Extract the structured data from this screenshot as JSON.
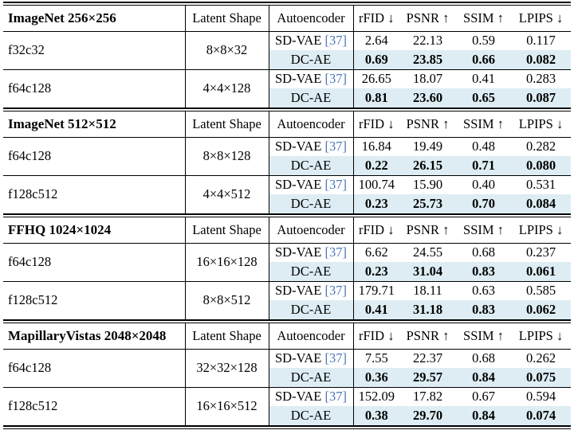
{
  "table": {
    "column_headers": {
      "latent_shape": "Latent Shape",
      "autoencoder": "Autoencoder",
      "metrics": [
        "rFID ↓",
        "PSNR ↑",
        "SSIM ↑",
        "LPIPS ↓"
      ]
    },
    "colors": {
      "highlight_row": "#ddedf3",
      "citation_link": "#4a77b4",
      "rule": "#000000",
      "text": "#000000",
      "background": "#ffffff"
    },
    "sections": [
      {
        "title": "ImageNet 256×256",
        "groups": [
          {
            "config": "f32c32",
            "latent_shape": "8×8×32",
            "rows": [
              {
                "autoencoder": "SD-VAE",
                "citation": "[37]",
                "highlight": false,
                "bold": false,
                "values": [
                  "2.64",
                  "22.13",
                  "0.59",
                  "0.117"
                ]
              },
              {
                "autoencoder": "DC-AE",
                "citation": "",
                "highlight": true,
                "bold": true,
                "values": [
                  "0.69",
                  "23.85",
                  "0.66",
                  "0.082"
                ]
              }
            ]
          },
          {
            "config": "f64c128",
            "latent_shape": "4×4×128",
            "rows": [
              {
                "autoencoder": "SD-VAE",
                "citation": "[37]",
                "highlight": false,
                "bold": false,
                "values": [
                  "26.65",
                  "18.07",
                  "0.41",
                  "0.283"
                ]
              },
              {
                "autoencoder": "DC-AE",
                "citation": "",
                "highlight": true,
                "bold": true,
                "values": [
                  "0.81",
                  "23.60",
                  "0.65",
                  "0.087"
                ]
              }
            ]
          }
        ]
      },
      {
        "title": "ImageNet 512×512",
        "groups": [
          {
            "config": "f64c128",
            "latent_shape": "8×8×128",
            "rows": [
              {
                "autoencoder": "SD-VAE",
                "citation": "[37]",
                "highlight": false,
                "bold": false,
                "values": [
                  "16.84",
                  "19.49",
                  "0.48",
                  "0.282"
                ]
              },
              {
                "autoencoder": "DC-AE",
                "citation": "",
                "highlight": true,
                "bold": true,
                "values": [
                  "0.22",
                  "26.15",
                  "0.71",
                  "0.080"
                ]
              }
            ]
          },
          {
            "config": "f128c512",
            "latent_shape": "4×4×512",
            "rows": [
              {
                "autoencoder": "SD-VAE",
                "citation": "[37]",
                "highlight": false,
                "bold": false,
                "values": [
                  "100.74",
                  "15.90",
                  "0.40",
                  "0.531"
                ]
              },
              {
                "autoencoder": "DC-AE",
                "citation": "",
                "highlight": true,
                "bold": true,
                "values": [
                  "0.23",
                  "25.73",
                  "0.70",
                  "0.084"
                ]
              }
            ]
          }
        ]
      },
      {
        "title": "FFHQ 1024×1024",
        "groups": [
          {
            "config": "f64c128",
            "latent_shape": "16×16×128",
            "rows": [
              {
                "autoencoder": "SD-VAE",
                "citation": "[37]",
                "highlight": false,
                "bold": false,
                "values": [
                  "6.62",
                  "24.55",
                  "0.68",
                  "0.237"
                ]
              },
              {
                "autoencoder": "DC-AE",
                "citation": "",
                "highlight": true,
                "bold": true,
                "values": [
                  "0.23",
                  "31.04",
                  "0.83",
                  "0.061"
                ]
              }
            ]
          },
          {
            "config": "f128c512",
            "latent_shape": "8×8×512",
            "rows": [
              {
                "autoencoder": "SD-VAE",
                "citation": "[37]",
                "highlight": false,
                "bold": false,
                "values": [
                  "179.71",
                  "18.11",
                  "0.63",
                  "0.585"
                ]
              },
              {
                "autoencoder": "DC-AE",
                "citation": "",
                "highlight": true,
                "bold": true,
                "values": [
                  "0.41",
                  "31.18",
                  "0.83",
                  "0.062"
                ]
              }
            ]
          }
        ]
      },
      {
        "title": "MapillaryVistas 2048×2048",
        "groups": [
          {
            "config": "f64c128",
            "latent_shape": "32×32×128",
            "rows": [
              {
                "autoencoder": "SD-VAE",
                "citation": "[37]",
                "highlight": false,
                "bold": false,
                "values": [
                  "7.55",
                  "22.37",
                  "0.68",
                  "0.262"
                ]
              },
              {
                "autoencoder": "DC-AE",
                "citation": "",
                "highlight": true,
                "bold": true,
                "values": [
                  "0.36",
                  "29.57",
                  "0.84",
                  "0.075"
                ]
              }
            ]
          },
          {
            "config": "f128c512",
            "latent_shape": "16×16×512",
            "rows": [
              {
                "autoencoder": "SD-VAE",
                "citation": "[37]",
                "highlight": false,
                "bold": false,
                "values": [
                  "152.09",
                  "17.82",
                  "0.67",
                  "0.594"
                ]
              },
              {
                "autoencoder": "DC-AE",
                "citation": "",
                "highlight": true,
                "bold": true,
                "values": [
                  "0.38",
                  "29.70",
                  "0.84",
                  "0.074"
                ]
              }
            ]
          }
        ]
      }
    ]
  }
}
